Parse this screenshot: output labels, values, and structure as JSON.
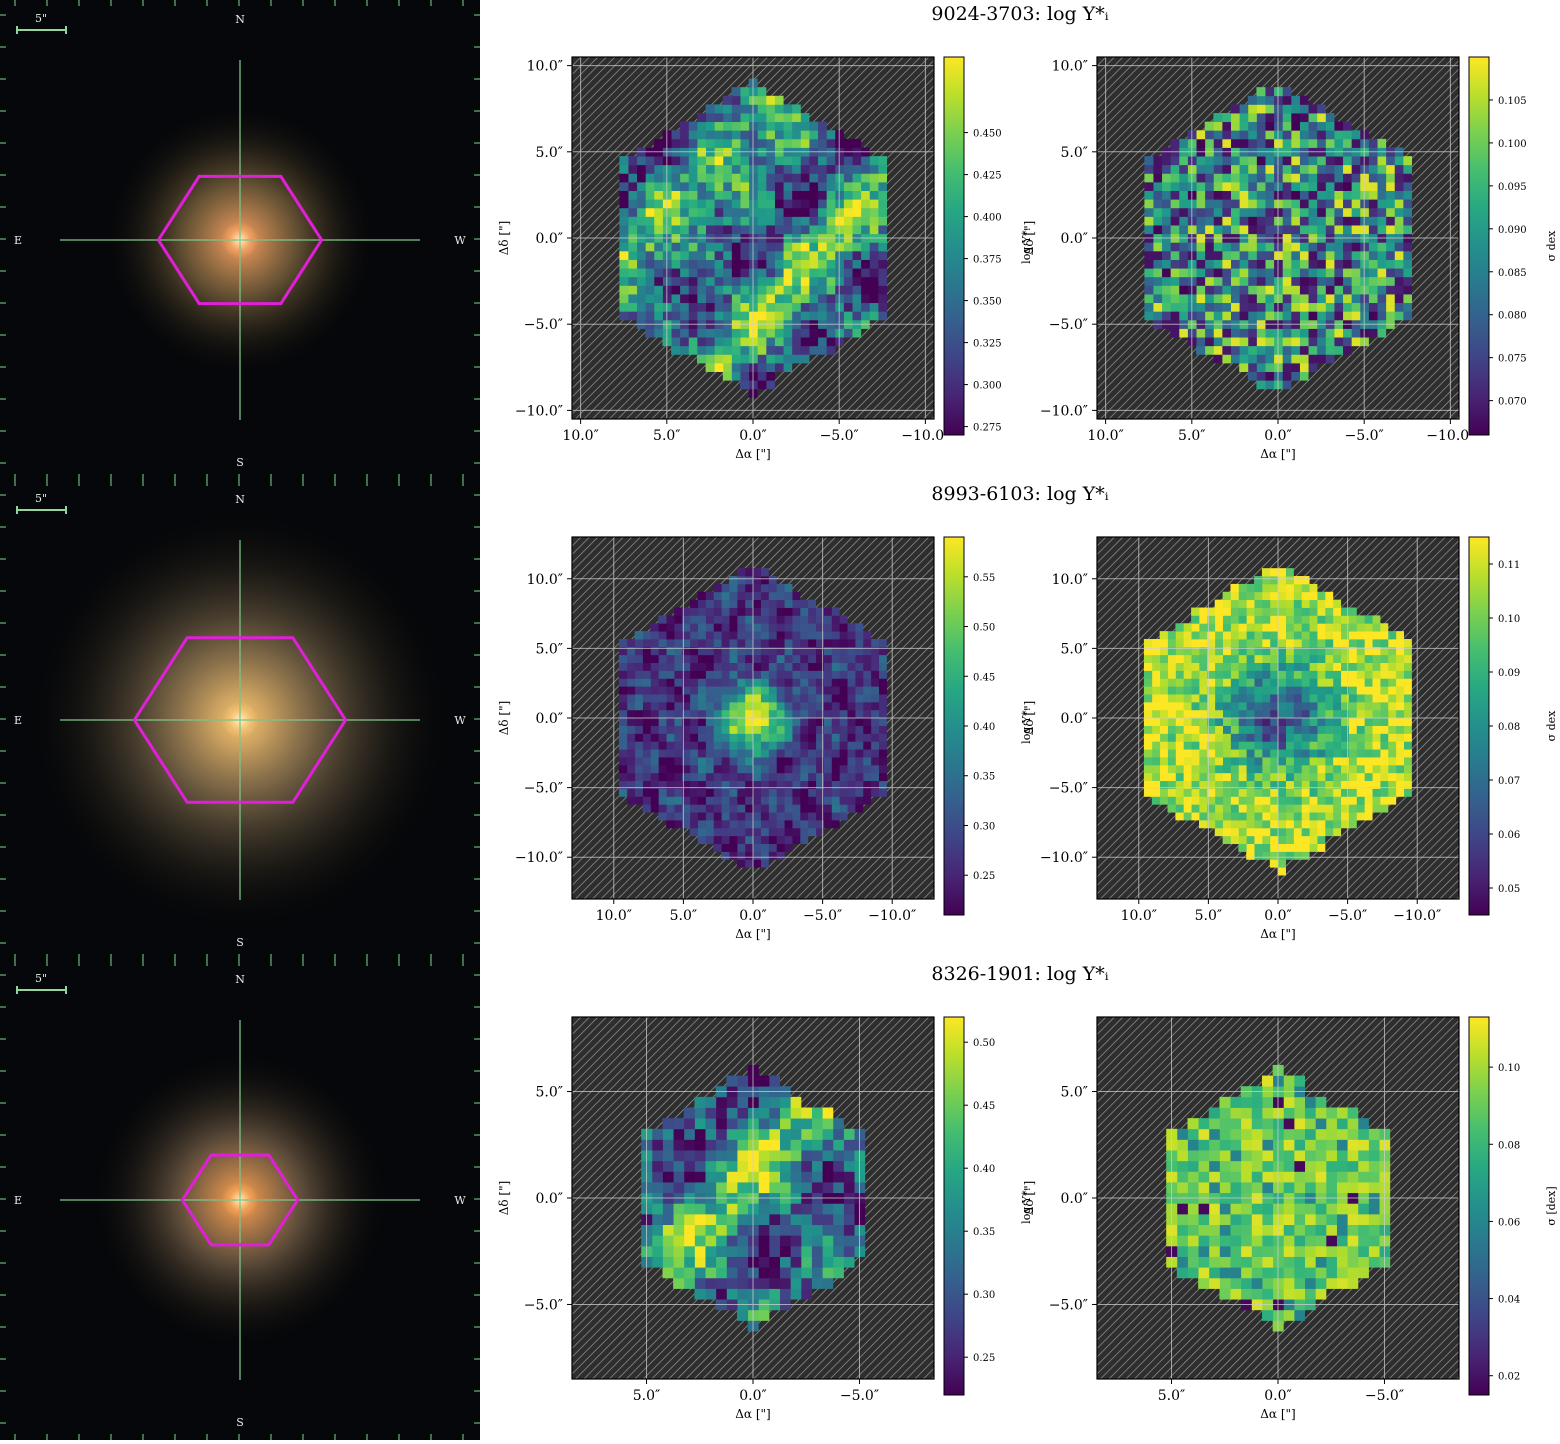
{
  "rows": [
    {
      "title": "9024-3703:  log Υ*ᵢ",
      "image": {
        "scalebar_label": "5\"",
        "compass": {
          "n": "N",
          "s": "S",
          "e": "E",
          "w": "W"
        },
        "hexagon_fraction": 0.68,
        "core_color": "#f2a060",
        "halo_color": "#c8a060",
        "halo_extent": 0.55
      },
      "panels": [
        {
          "kind": "value",
          "ylabel": "Δδ [\"]",
          "xlabel": "Δα [\"]",
          "colorbar_label": "log Υ*ᵢ",
          "ticks": [
            10,
            5,
            0,
            -5,
            -10
          ],
          "tick_labels": [
            "10.0″",
            "5.0″",
            "0.0″",
            "−5.0″",
            "−10.0″"
          ],
          "axis_range": [
            -10.5,
            10.5
          ],
          "map_radius": 9.0,
          "cbar_range": [
            0.27,
            0.495
          ],
          "cbar_ticks": [
            0.275,
            0.3,
            0.325,
            0.35,
            0.375,
            0.4,
            0.425,
            0.45
          ],
          "cbar_tick_labels": [
            "0.275",
            "0.300",
            "0.325",
            "0.350",
            "0.375",
            "0.400",
            "0.425",
            "0.450"
          ],
          "pattern": "patchy-mid"
        },
        {
          "kind": "error",
          "ylabel": "Δδ [\"]",
          "xlabel": "Δα [\"]",
          "colorbar_label": "σ dex",
          "ticks": [
            10,
            5,
            0,
            -5,
            -10
          ],
          "tick_labels": [
            "10.0″",
            "5.0″",
            "0.0″",
            "−5.0″",
            "−10.0″"
          ],
          "axis_range": [
            -10.5,
            10.5
          ],
          "map_radius": 9.0,
          "cbar_range": [
            0.066,
            0.11
          ],
          "cbar_ticks": [
            0.07,
            0.075,
            0.08,
            0.085,
            0.09,
            0.095,
            0.1,
            0.105
          ],
          "cbar_tick_labels": [
            "0.070",
            "0.075",
            "0.080",
            "0.085",
            "0.090",
            "0.095",
            "0.100",
            "0.105"
          ],
          "pattern": "noise"
        }
      ]
    },
    {
      "title": "8993-6103:  log Υ*ᵢ",
      "image": {
        "scalebar_label": "5\"",
        "compass": {
          "n": "N",
          "s": "S",
          "e": "E",
          "w": "W"
        },
        "hexagon_fraction": 0.88,
        "core_color": "#f3c070",
        "halo_color": "#c0a070",
        "halo_extent": 0.85
      },
      "panels": [
        {
          "kind": "value",
          "ylabel": "Δδ [\"]",
          "xlabel": "Δα [\"]",
          "colorbar_label": "log Υ*ᵢ",
          "ticks": [
            10,
            5,
            0,
            -5,
            -10
          ],
          "tick_labels": [
            "10.0″",
            "5.0″",
            "0.0″",
            "−5.0″",
            "−10.0″"
          ],
          "axis_range": [
            -13,
            13
          ],
          "map_radius": 11.0,
          "cbar_range": [
            0.21,
            0.59
          ],
          "cbar_ticks": [
            0.25,
            0.3,
            0.35,
            0.4,
            0.45,
            0.5,
            0.55
          ],
          "cbar_tick_labels": [
            "0.25",
            "0.30",
            "0.35",
            "0.40",
            "0.45",
            "0.50",
            "0.55"
          ],
          "pattern": "central-peak"
        },
        {
          "kind": "error",
          "ylabel": "Δδ [\"]",
          "xlabel": "Δα [\"]",
          "colorbar_label": "σ dex",
          "ticks": [
            10,
            5,
            0,
            -5,
            -10
          ],
          "tick_labels": [
            "10.0″",
            "5.0″",
            "0.0″",
            "−5.0″",
            "−10.0″"
          ],
          "axis_range": [
            -13,
            13
          ],
          "map_radius": 11.0,
          "cbar_range": [
            0.045,
            0.115
          ],
          "cbar_ticks": [
            0.05,
            0.06,
            0.07,
            0.08,
            0.09,
            0.1,
            0.11
          ],
          "cbar_tick_labels": [
            "0.05",
            "0.06",
            "0.07",
            "0.08",
            "0.09",
            "0.10",
            "0.11"
          ],
          "pattern": "central-dip"
        }
      ]
    },
    {
      "title": "8326-1901:  log Υ*ᵢ",
      "image": {
        "scalebar_label": "5\"",
        "compass": {
          "n": "N",
          "s": "S",
          "e": "E",
          "w": "W"
        },
        "hexagon_fraction": 0.48,
        "core_color": "#f3a055",
        "halo_color": "#c09a70",
        "halo_extent": 0.6
      },
      "panels": [
        {
          "kind": "value",
          "ylabel": "Δδ [\"]",
          "xlabel": "Δα [\"]",
          "colorbar_label": "log Υ*ᵢ",
          "ticks": [
            5,
            0,
            -5
          ],
          "tick_labels": [
            "5.0″",
            "0.0″",
            "−5.0″"
          ],
          "axis_range": [
            -8.5,
            8.5
          ],
          "map_radius": 6.0,
          "cbar_range": [
            0.22,
            0.52
          ],
          "cbar_ticks": [
            0.25,
            0.3,
            0.35,
            0.4,
            0.45,
            0.5
          ],
          "cbar_tick_labels": [
            "0.25",
            "0.30",
            "0.35",
            "0.40",
            "0.45",
            "0.50"
          ],
          "pattern": "patchy-mid"
        },
        {
          "kind": "error",
          "ylabel": "Δδ [\"]",
          "xlabel": "Δα [\"]",
          "colorbar_label": "σ [dex]",
          "ticks": [
            5,
            0,
            -5
          ],
          "tick_labels": [
            "5.0″",
            "0.0″",
            "−5.0″"
          ],
          "axis_range": [
            -8.5,
            8.5
          ],
          "map_radius": 6.0,
          "cbar_range": [
            0.015,
            0.113
          ],
          "cbar_ticks": [
            0.02,
            0.04,
            0.06,
            0.08,
            0.1
          ],
          "cbar_tick_labels": [
            "0.02",
            "0.04",
            "0.06",
            "0.08",
            "0.10"
          ],
          "pattern": "high-noise"
        }
      ]
    }
  ]
}
